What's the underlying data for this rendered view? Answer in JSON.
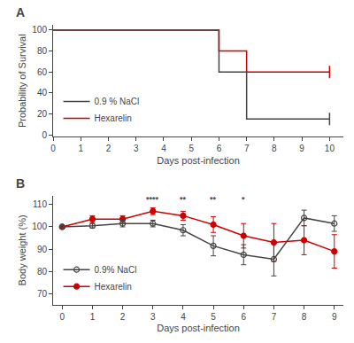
{
  "chart_data": [
    {
      "type": "line",
      "title": "A",
      "xlabel": "Days post-infection",
      "ylabel": "Probability of Survival",
      "xlim": [
        0,
        10.5
      ],
      "ylim": [
        -2,
        105
      ],
      "xticks": [
        0,
        1,
        2,
        3,
        4,
        5,
        6,
        7,
        8,
        9,
        10
      ],
      "yticks": [
        0,
        20,
        40,
        60,
        80,
        100
      ],
      "grid": false,
      "legend": "lower left",
      "series": [
        {
          "name": "0.9 % NaCl",
          "color": "#444444",
          "line_style": "solid",
          "x": [
            0,
            6,
            6,
            7,
            7,
            10
          ],
          "values": [
            100,
            100,
            60,
            60,
            15,
            15
          ],
          "censored": {
            "x": [
              10
            ],
            "y": [
              15
            ]
          }
        },
        {
          "name": "Hexarelin",
          "color": "#cc0000",
          "line_style": "solid",
          "x": [
            0,
            6,
            6,
            7,
            7,
            10
          ],
          "values": [
            100,
            100,
            80,
            80,
            60,
            60
          ],
          "censored": {
            "x": [
              10
            ],
            "y": [
              60
            ]
          }
        }
      ]
    },
    {
      "type": "line",
      "title": "B",
      "xlabel": "Days post-infection",
      "ylabel": "Body weight (%)",
      "xlim": [
        -0.3,
        9.3
      ],
      "ylim": [
        65,
        114
      ],
      "xticks": [
        0,
        1,
        2,
        3,
        4,
        5,
        6,
        7,
        8,
        9
      ],
      "yticks": [
        70,
        80,
        90,
        100,
        110
      ],
      "grid": false,
      "legend": "lower left",
      "x": [
        0,
        1,
        2,
        3,
        4,
        5,
        6,
        7,
        8,
        9
      ],
      "series": [
        {
          "name": "0.9% NaCl",
          "color": "#444444",
          "marker": "open circle",
          "line_style": "solid",
          "values": [
            100.0,
            100.5,
            101.5,
            101.5,
            98.5,
            91.5,
            87.5,
            85.5,
            104.0,
            101.5
          ],
          "error": [
            0.5,
            1.0,
            1.5,
            1.5,
            2.5,
            4.5,
            4.5,
            7.5,
            3.5,
            3.5
          ]
        },
        {
          "name": "Hexarelin",
          "color": "#cc0000",
          "marker": "circle",
          "line_style": "solid",
          "values": [
            100.0,
            103.5,
            103.5,
            107.0,
            105.0,
            101.0,
            96.0,
            93.0,
            94.0,
            89.0
          ],
          "error": [
            0.5,
            1.5,
            1.5,
            1.5,
            2.0,
            3.5,
            5.5,
            8.5,
            6.5,
            7.5
          ]
        }
      ],
      "annotations": [
        {
          "x": 3,
          "y": 109.5,
          "text": "****"
        },
        {
          "x": 4,
          "y": 109.5,
          "text": "**"
        },
        {
          "x": 5,
          "y": 109.5,
          "text": "**"
        },
        {
          "x": 6,
          "y": 109.5,
          "text": "*"
        }
      ]
    }
  ]
}
